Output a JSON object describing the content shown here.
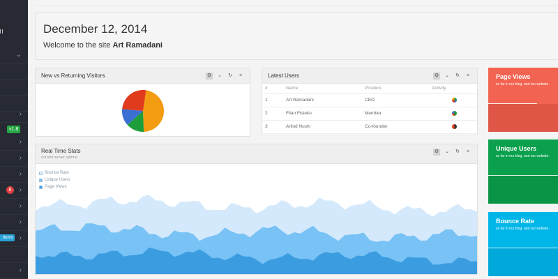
{
  "header": {
    "date": "December 12, 2014",
    "welcome_prefix": "Welcome to the site ",
    "user_name": "Art Ramadani"
  },
  "sidebar": {
    "badge_version": "v1.8",
    "badge_count": "8",
    "badge_items": "Items"
  },
  "pie_panel": {
    "title": "New vs Returning Visitors",
    "slices": [
      {
        "label": "orange",
        "value": 47,
        "color": "#f39c12"
      },
      {
        "label": "green",
        "value": 14,
        "color": "#1e9e3a"
      },
      {
        "label": "blue",
        "value": 13,
        "color": "#3b6fd1"
      },
      {
        "label": "red",
        "value": 26,
        "color": "#e03b1d"
      }
    ]
  },
  "users_panel": {
    "title": "Latest Users",
    "columns": [
      "#",
      "Name",
      "Position",
      "Activity"
    ],
    "rows": [
      {
        "num": "1",
        "name": "Art Ramadani",
        "position": "CEO"
      },
      {
        "num": "2",
        "name": "Filan Fisteku",
        "position": "Member"
      },
      {
        "num": "3",
        "name": "Arlind Nushi",
        "position": "Co-founder"
      }
    ]
  },
  "realtime_panel": {
    "title": "Real Time Stats",
    "subtitle": "current server uptime",
    "legend": [
      "Bounce Rate",
      "Unique Users",
      "Page Views"
    ]
  },
  "stats": [
    {
      "title": "Page Views",
      "subtitle": "so far in our blog, and our website.",
      "color_top": "#f26451",
      "color_bottom": "#df5647"
    },
    {
      "title": "Unique Users",
      "subtitle": "so far in our blog, and our website.",
      "color_top": "#0aa04d",
      "color_bottom": "#0a9446"
    },
    {
      "title": "Bounce Rate",
      "subtitle": "so far in our blog, and our website.",
      "color_top": "#00b6e8",
      "color_bottom": "#00a9d9"
    }
  ],
  "colors": {
    "sidebar": "#272a33",
    "area_light": "#d4e9fb",
    "area_mid": "#78c2f5",
    "area_dark": "#3b9de0"
  }
}
